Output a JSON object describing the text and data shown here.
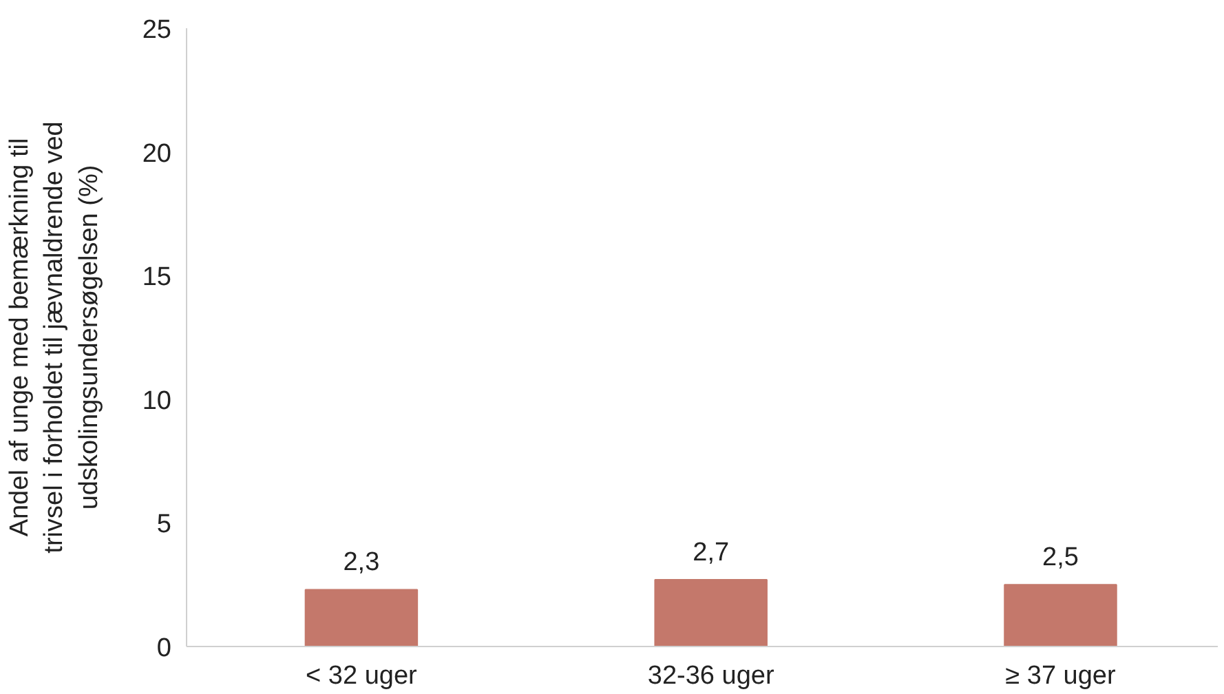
{
  "chart_data": {
    "type": "bar",
    "ylabel": "Andel af unge med bemærkning til\ntrivsel i forholdet til jævnaldrende ved\nudskolingsundersøgelsen (%)",
    "categories": [
      "< 32 uger",
      "32-36 uger",
      "≥ 37 uger"
    ],
    "values": [
      2.3,
      2.7,
      2.5
    ],
    "value_labels": [
      "2,3",
      "2,7",
      "2,5"
    ],
    "color": "#c4786b",
    "ylim": [
      0,
      25
    ],
    "yticks": [
      0,
      5,
      10,
      15,
      20,
      25
    ],
    "grid": false
  }
}
